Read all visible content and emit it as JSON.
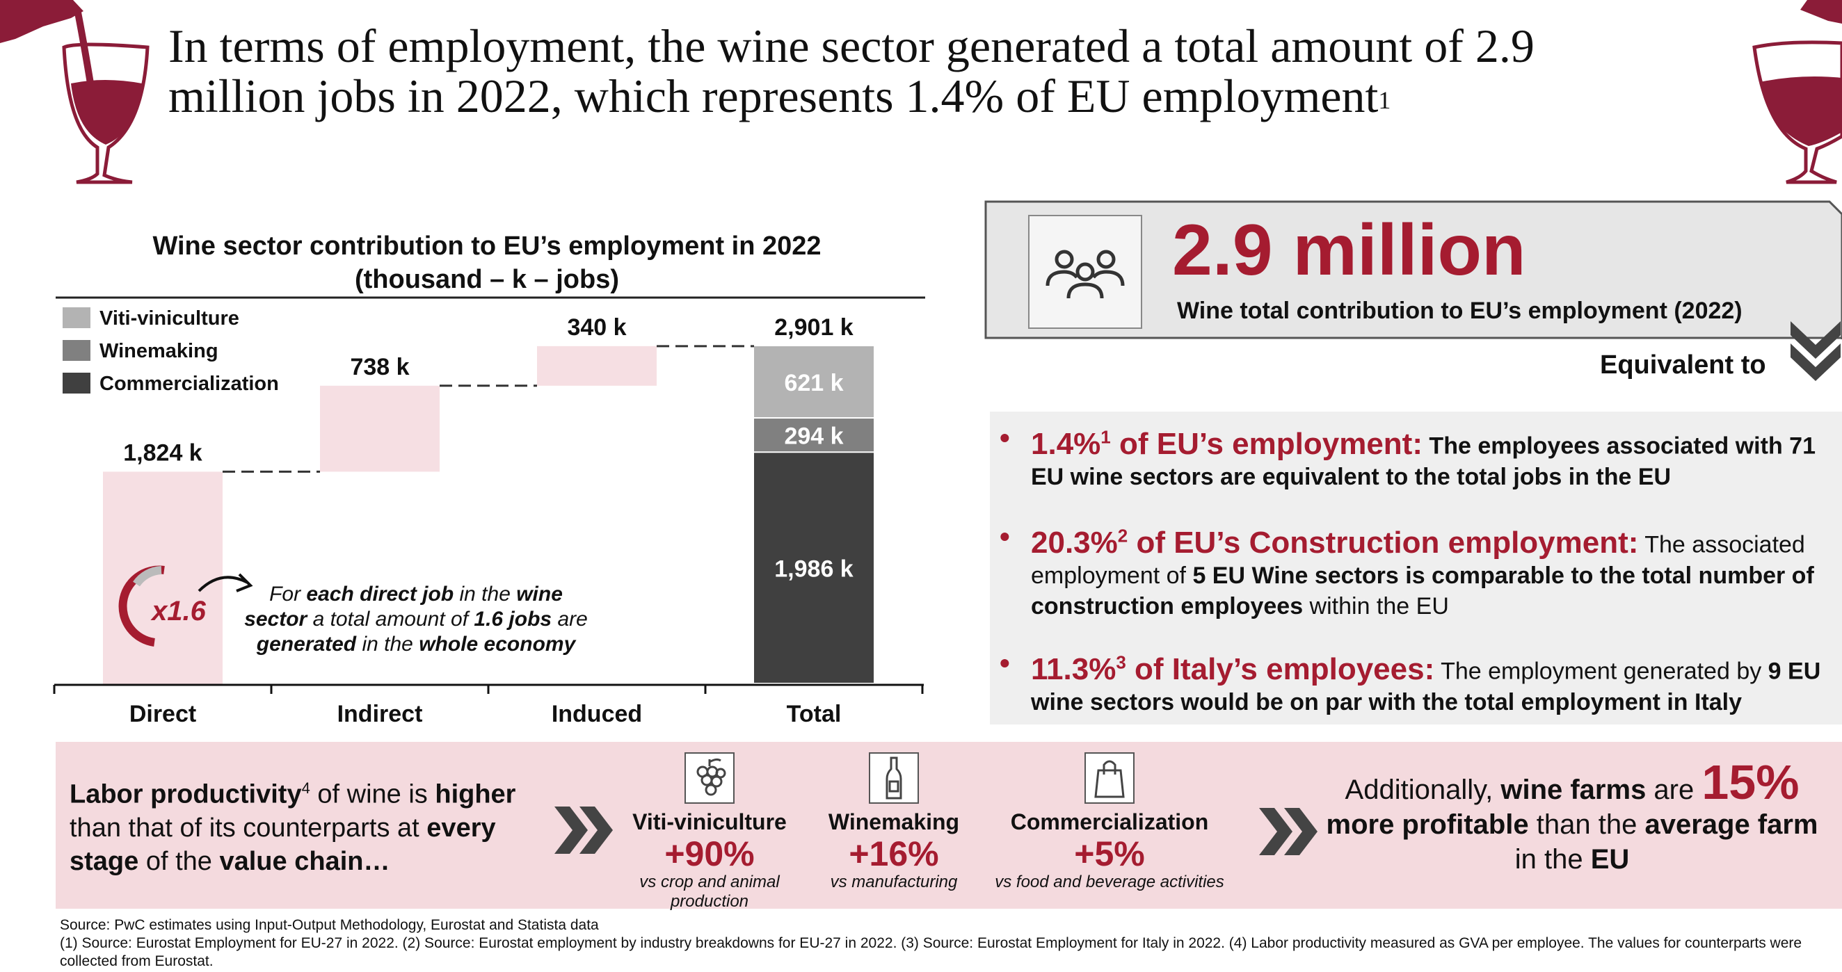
{
  "title": {
    "line1": "In terms of employment, the wine sector generated a total amount of 2.9",
    "line2": "million jobs in 2022, which represents 1.4% of EU employment",
    "sup": "1"
  },
  "chart_data": {
    "type": "bar",
    "title": "Wine sector contribution to EU’s employment in 2022",
    "subtitle": "(thousand – k – jobs)",
    "categories": [
      "Direct",
      "Indirect",
      "Induced",
      "Total"
    ],
    "waterfall": [
      {
        "category": "Direct",
        "value": 1824,
        "label": "1,824 k"
      },
      {
        "category": "Indirect",
        "value": 738,
        "label": "738 k"
      },
      {
        "category": "Induced",
        "value": 340,
        "label": "340 k"
      }
    ],
    "total": {
      "value": 2901,
      "label": "2,901 k"
    },
    "series": [
      {
        "name": "Commercialization",
        "values": [
          null,
          null,
          null,
          1986
        ],
        "labels": [
          "",
          "",
          "",
          "1,986 k"
        ]
      },
      {
        "name": "Winemaking",
        "values": [
          null,
          null,
          null,
          294
        ],
        "labels": [
          "",
          "",
          "",
          "294 k"
        ]
      },
      {
        "name": "Viti-viniculture",
        "values": [
          null,
          null,
          null,
          621
        ],
        "labels": [
          "",
          "",
          "",
          "621 k"
        ]
      }
    ],
    "legend": [
      "Viti-viniculture",
      "Winemaking",
      "Commercialization"
    ],
    "legend_position": "top-left",
    "ylim": [
      0,
      3000
    ],
    "colors": {
      "waterfall": "#f6dfe3",
      "Viti-viniculture": "#b3b3b3",
      "Winemaking": "#808080",
      "Commercialization": "#404040",
      "accent": "#a51c30"
    },
    "multiplier": {
      "value": "x1.6",
      "text_parts": [
        "For ",
        "each direct job",
        " in the ",
        "wine",
        " ",
        "sector",
        " a total amount of ",
        "1.6 jobs",
        " are ",
        "generated",
        " in the ",
        "whole economy"
      ]
    }
  },
  "summary": {
    "icon": "people-group-icon",
    "value": "2.9 million",
    "caption": "Wine total contribution to EU’s employment (2022)",
    "equivalent_label": "Equivalent to"
  },
  "equivalents": [
    {
      "head": "1.4%",
      "sup": "1",
      "head_rest": " of EU’s employment:",
      "text": [
        {
          "t": " The employees associated with 71 EU wine sectors are equivalent to the total jobs in the EU",
          "b": true
        }
      ]
    },
    {
      "head": "20.3%",
      "sup": "2",
      "head_rest": " of EU’s Construction employment:",
      "text": [
        {
          "t": " The associated employment of ",
          "b": false
        },
        {
          "t": "5 EU Wine sectors is comparable to the total number of construction employees",
          "b": true
        },
        {
          "t": " within the EU",
          "b": false
        }
      ]
    },
    {
      "head": "11.3%",
      "sup": "3",
      "head_rest": " of Italy’s employees:",
      "text": [
        {
          "t": " The employment generated by ",
          "b": false
        },
        {
          "t": "9 EU wine sectors would be on par with the total employment in Italy",
          "b": true
        }
      ]
    }
  ],
  "productivity": {
    "lead_parts": [
      {
        "t": "Labor productivity",
        "b": true
      },
      {
        "t": "4",
        "sup": true
      },
      {
        "t": " of wine is ",
        "b": false
      },
      {
        "t": "higher",
        "b": true
      },
      {
        "t": " than that of its counterparts at ",
        "b": false
      },
      {
        "t": "every stage",
        "b": true
      },
      {
        "t": " of the ",
        "b": false
      },
      {
        "t": "value chain…",
        "b": true
      }
    ],
    "items": [
      {
        "icon": "grapes-icon",
        "name": "Viti-viniculture",
        "value": "+90%",
        "vs": "vs crop and animal production"
      },
      {
        "icon": "wine-bottle-icon",
        "name": "Winemaking",
        "value": "+16%",
        "vs": "vs manufacturing"
      },
      {
        "icon": "shopping-bag-icon",
        "name": "Commercialization",
        "value": "+5%",
        "vs": "vs food and beverage activities"
      }
    ],
    "farms": {
      "pre": "Additionally, ",
      "b1": "wine farms",
      "mid1": " are ",
      "big": "15%",
      "b2": "more profitable",
      "mid2": " than the ",
      "b3": "average farm",
      "mid3": " in the ",
      "b4": "EU"
    }
  },
  "footer": {
    "source": "Source: PwC estimates using Input-Output Methodology, Eurostat and Statista data",
    "notes": "(1) Source: Eurostat Employment for EU-27 in 2022. (2) Source: Eurostat employment by industry breakdowns for EU-27 in 2022. (3) Source: Eurostat Employment for Italy in 2022. (4) Labor productivity measured as GVA per employee. The values for counterparts were collected from Eurostat."
  }
}
